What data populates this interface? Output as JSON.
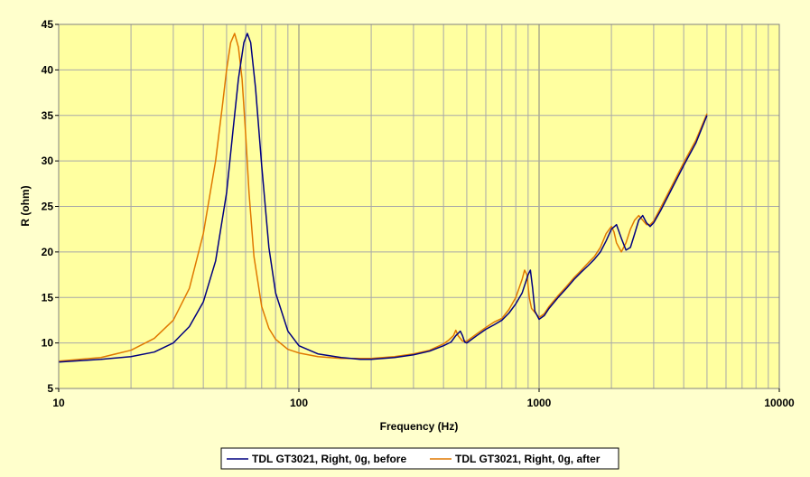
{
  "chart_data": {
    "type": "line",
    "title": "",
    "xlabel": "Frequency (Hz)",
    "ylabel": "R (ohm)",
    "xscale": "log",
    "xlim": [
      10,
      10000
    ],
    "ylim": [
      5,
      45
    ],
    "x_ticks": [
      "10",
      "100",
      "1000",
      "10000"
    ],
    "y_ticks": [
      "5",
      "10",
      "15",
      "20",
      "25",
      "30",
      "35",
      "40",
      "45"
    ],
    "grid": true,
    "legend_position": "bottom",
    "plot_background": "#ffffa0",
    "chart_background": "#ffffcc",
    "series": [
      {
        "name": "TDL GT3021, Right, 0g, before",
        "color": "#000080",
        "x": [
          10,
          15,
          20,
          25,
          30,
          35,
          40,
          45,
          50,
          53,
          56,
          59,
          61,
          63,
          66,
          70,
          75,
          80,
          90,
          100,
          120,
          150,
          180,
          200,
          250,
          300,
          350,
          400,
          430,
          450,
          470,
          480,
          490,
          500,
          550,
          600,
          650,
          700,
          750,
          800,
          850,
          900,
          920,
          940,
          960,
          1000,
          1050,
          1100,
          1200,
          1300,
          1400,
          1500,
          1600,
          1700,
          1800,
          1900,
          2000,
          2100,
          2200,
          2300,
          2400,
          2500,
          2600,
          2700,
          2800,
          2900,
          3000,
          3200,
          3500,
          4000,
          4500,
          5000
        ],
        "values": [
          7.9,
          8.2,
          8.5,
          9.0,
          10.0,
          11.8,
          14.5,
          19.0,
          26.5,
          33.0,
          39.0,
          43.0,
          44.0,
          43.0,
          38.0,
          29.5,
          20.5,
          15.5,
          11.3,
          9.7,
          8.8,
          8.4,
          8.2,
          8.2,
          8.4,
          8.7,
          9.1,
          9.7,
          10.1,
          10.8,
          11.3,
          10.8,
          10.1,
          10.0,
          10.8,
          11.5,
          12.0,
          12.5,
          13.3,
          14.3,
          15.5,
          17.5,
          18.0,
          16.0,
          13.5,
          12.6,
          13.0,
          13.8,
          15.0,
          16.0,
          17.0,
          17.8,
          18.5,
          19.2,
          20.0,
          21.2,
          22.5,
          23.0,
          21.5,
          20.2,
          20.5,
          22.0,
          23.5,
          24.0,
          23.2,
          22.8,
          23.2,
          24.5,
          26.5,
          29.5,
          32.0,
          35.0
        ]
      },
      {
        "name": "TDL GT3021, Right, 0g, after",
        "color": "#e07800",
        "x": [
          10,
          15,
          20,
          25,
          30,
          35,
          40,
          45,
          48,
          50,
          52,
          54,
          56,
          58,
          60,
          62,
          65,
          70,
          75,
          80,
          90,
          100,
          120,
          150,
          180,
          200,
          250,
          300,
          350,
          400,
          420,
          440,
          450,
          460,
          480,
          500,
          550,
          600,
          650,
          700,
          750,
          800,
          850,
          870,
          890,
          910,
          930,
          1000,
          1050,
          1100,
          1200,
          1300,
          1400,
          1500,
          1600,
          1700,
          1800,
          1900,
          2000,
          2050,
          2100,
          2200,
          2300,
          2400,
          2500,
          2600,
          2700,
          2800,
          2900,
          3000,
          3200,
          3500,
          4000,
          4500,
          5000
        ],
        "values": [
          8.0,
          8.4,
          9.2,
          10.5,
          12.5,
          16.0,
          22.0,
          30.0,
          36.0,
          40.0,
          43.0,
          44.0,
          42.5,
          39.0,
          33.0,
          26.5,
          19.5,
          14.0,
          11.6,
          10.4,
          9.3,
          8.9,
          8.5,
          8.3,
          8.3,
          8.3,
          8.5,
          8.8,
          9.2,
          9.9,
          10.3,
          10.8,
          11.4,
          10.8,
          10.2,
          10.2,
          11.0,
          11.7,
          12.3,
          12.7,
          13.7,
          15.0,
          17.0,
          18.0,
          17.5,
          15.0,
          13.8,
          12.8,
          13.2,
          14.0,
          15.2,
          16.2,
          17.2,
          18.0,
          18.8,
          19.5,
          20.5,
          22.0,
          22.8,
          22.2,
          21.0,
          20.0,
          21.0,
          22.5,
          23.5,
          24.0,
          23.5,
          23.0,
          23.0,
          23.4,
          24.8,
          26.8,
          29.8,
          32.3,
          35.2
        ]
      }
    ]
  }
}
